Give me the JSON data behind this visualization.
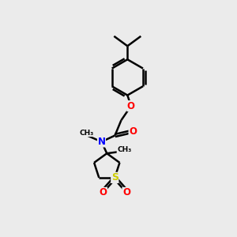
{
  "bg_color": "#ebebeb",
  "atom_colors": {
    "C": "#000000",
    "N": "#0000ff",
    "O": "#ff0000",
    "S": "#cccc00"
  },
  "bond_color": "#000000",
  "bond_width": 1.8,
  "fig_w": 3.0,
  "fig_h": 3.0,
  "dpi": 100
}
